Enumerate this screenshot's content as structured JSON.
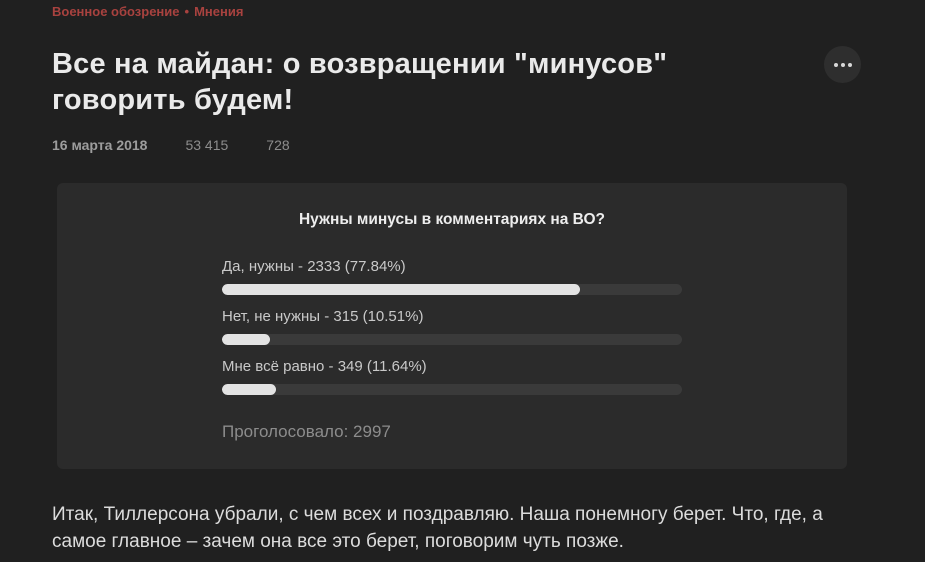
{
  "breadcrumb": {
    "site": "Военное обозрение",
    "separator": "•",
    "section": "Мнения"
  },
  "article": {
    "title": "Все на майдан: о возвращении \"минусов\" говорить будем!",
    "date": "16 марта 2018",
    "views": "53 415",
    "comments": "728",
    "body_paragraph": "Итак, Тиллерсона убрали, с чем всех и поздравляю. Наша понемногу берет. Что, где, а самое главное – зачем она все это берет, поговорим чуть позже."
  },
  "poll": {
    "question": "Нужны минусы в комментариях на ВО?",
    "options": [
      {
        "label": "Да, нужны - 2333 (77.84%)",
        "votes": 2333,
        "percent": 77.84
      },
      {
        "label": "Нет, не нужны - 315 (10.51%)",
        "votes": 315,
        "percent": 10.51
      },
      {
        "label": "Мне всё равно - 349 (11.64%)",
        "votes": 349,
        "percent": 11.64
      }
    ],
    "total_label": "Проголосовало: 2997",
    "total_votes": 2997
  },
  "chart_data": {
    "type": "bar",
    "title": "Нужны минусы в комментариях на ВО?",
    "categories": [
      "Да, нужны",
      "Нет, не нужны",
      "Мне всё равно"
    ],
    "values": [
      2333,
      315,
      349
    ],
    "percents": [
      77.84,
      10.51,
      11.64
    ],
    "total": 2997,
    "xlim_percent": [
      0,
      100
    ]
  },
  "colors": {
    "page_bg": "#202020",
    "poll_bg": "#2b2b2b",
    "accent_red": "#a8423f",
    "bar_fill": "#e3e3e3",
    "bar_track": "#3a3a3a"
  }
}
